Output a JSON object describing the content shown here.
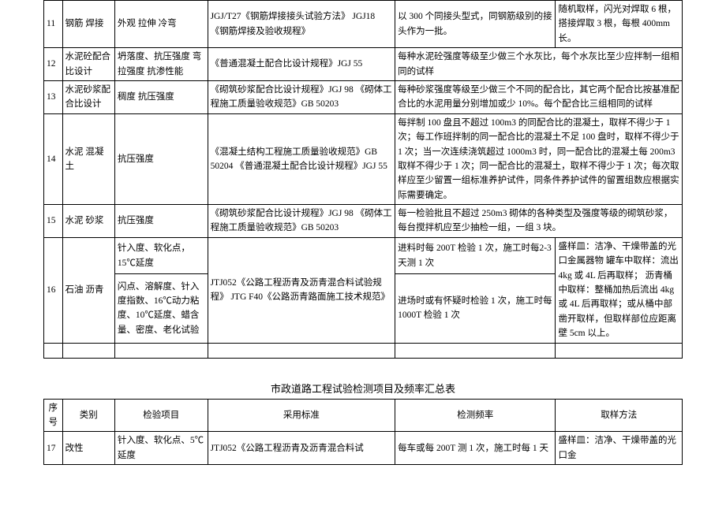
{
  "tableTitle": "市政道路工程试验检测项目及频率汇总表",
  "headers": {
    "num": "序号",
    "cat": "类别",
    "item": "检验项目",
    "std": "采用标准",
    "freq": "检测频率",
    "samp": "取样方法"
  },
  "rows": {
    "r11": {
      "num": "11",
      "cat": "钢筋\n焊接",
      "item": "外观\n拉伸\n冷弯",
      "std": "JGJ/T27《钢筋焊接接头试验方法》\nJGJ18《钢筋焊接及验收规程》",
      "freq": "以 300 个同接头型式，同钢筋级别的接头作为一批。",
      "samp": "随机取样，闪光对焊取 6 根，搭接焊取 3 根，每根 400mm 长。"
    },
    "r12": {
      "num": "12",
      "cat": "水泥砼配合比设计",
      "item": "坍落度、抗压强度\n弯拉强度\n抗渗性能",
      "std": "《普通混凝土配合比设计规程》JGJ 55",
      "freq": "每种水泥砼强度等级至少做三个水灰比，每个水灰比至少应拌制一组相同的试样"
    },
    "r13": {
      "num": "13",
      "cat": "水泥砂浆配合比设计",
      "item": "稠度\n抗压强度",
      "std": "《砌筑砂浆配合比设计规程》JGJ 98\n《砌体工程施工质量验收规范》GB 50203",
      "freq": "每种砂浆强度等级至少做三个不同的配合比，其它两个配合比按基准配合比的水泥用量分别增加或少 10%。每个配合比三组相同的试样"
    },
    "r14": {
      "num": "14",
      "cat": "水泥\n混凝土",
      "item": "抗压强度",
      "std": "《混凝土结构工程施工质量验收规范》GB 50204\n《普通混凝土配合比设计规程》JGJ 55",
      "freq": "每拌制 100 盘且不超过 100m3 的同配合比的混凝土，取样不得少于 1 次；每工作班拌制的同一配合比的混凝土不足 100 盘时，取样不得少于 1 次；当一次连续浇筑超过 1000m3 时，同一配合比的混凝土每 200m3 取样不得少于 1 次；同一配合比的混凝土，取样不得少于 1 次；每次取样应至少留置一组标准养护试件，同条件养护试件的留置组数应根据实际需要确定。"
    },
    "r15": {
      "num": "15",
      "cat": "水泥\n砂浆",
      "item": "抗压强度",
      "std": "《砌筑砂浆配合比设计规程》JGJ 98\n《砌体工程施工质量验收规范》GB 50203",
      "freq": "每一检验批且不超过 250m3 砌体的各种类型及强度等级的砌筑砂浆，每台搅拌机应至少抽检一组，一组 3 块。"
    },
    "r16a": {
      "item": "针入度、软化点，15℃延度",
      "freq": "进料时每 200T 检验 1 次，施工时每2-3 天测 1 次"
    },
    "r16b": {
      "num": "16",
      "cat": "石油\n沥青",
      "item": "闪点、溶解度、针入度指数、16℃动力粘度、10℃延度、蜡含量、密度、老化试验",
      "std": "JTJ052《公路工程沥青及沥青混合料试验规程》\nJTG F40《公路沥青路面施工技术规范》",
      "freq": "进场时或有怀疑时检验 1 次，施工时每 1000T 检验 1 次",
      "samp": "盛样皿：洁净、干燥带盖的光口金属器物\n罐车中取样：流出 4kg 或 4L 后再取样；\n沥青桶中取样：整桶加热后流出 4kg或 4L 后再取样；或从桶中部凿开取样，但取样部位应距离壁 5cm 以上。"
    },
    "r17": {
      "num": "17",
      "cat": "改性",
      "item": "针入度、软化点、5℃延度",
      "std": "JTJ052《公路工程沥青及沥青混合料试",
      "freq": "每车或每 200T 测 1 次，施工时每 1 天",
      "samp": "盛样皿：洁净、干燥带盖的光口金"
    }
  }
}
